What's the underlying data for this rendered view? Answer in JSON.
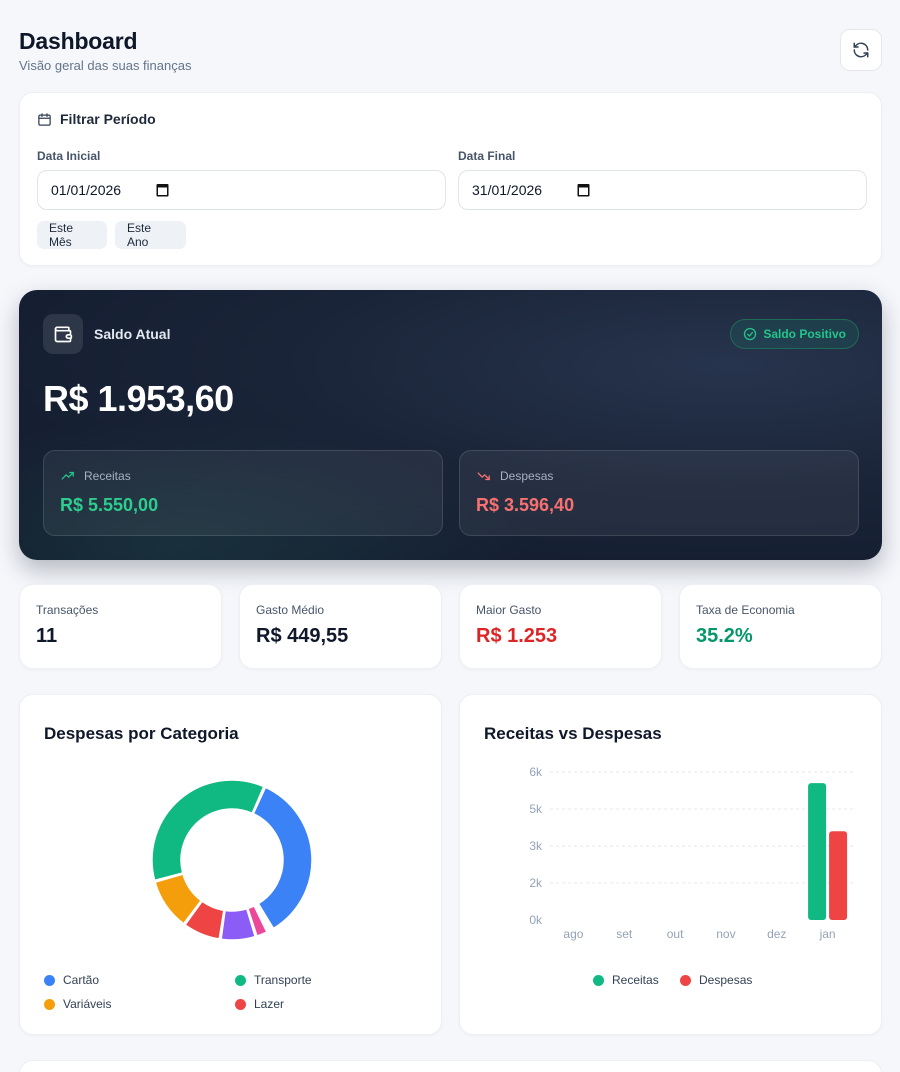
{
  "header": {
    "title": "Dashboard",
    "subtitle": "Visão geral das suas finanças",
    "refresh_icon": "refresh-icon"
  },
  "filter": {
    "title": "Filtrar Período",
    "start_label": "Data Inicial",
    "start_value": "01/01/2026",
    "end_label": "Data Final",
    "end_value": "31/01/2026",
    "quick": [
      "Este Mês",
      "Este Ano"
    ]
  },
  "balance": {
    "label": "Saldo Atual",
    "badge": "Saldo Positivo",
    "value": "R$ 1.953,60",
    "income_label": "Receitas",
    "income_value": "R$ 5.550,00",
    "expense_label": "Despesas",
    "expense_value": "R$ 3.596,40"
  },
  "stats": [
    {
      "label": "Transações",
      "value": "11",
      "color": "#0f172a"
    },
    {
      "label": "Gasto Médio",
      "value": "R$ 449,55",
      "color": "#0f172a"
    },
    {
      "label": "Maior Gasto",
      "value": "R$ 1.253",
      "color": "#dc2626"
    },
    {
      "label": "Taxa de Economia",
      "value": "35.2%",
      "color": "#059669"
    }
  ],
  "donut": {
    "title": "Despesas por Categoria",
    "legend": [
      "Cartão",
      "Transporte",
      "Variáveis",
      "Lazer"
    ]
  },
  "bar": {
    "title": "Receitas vs Despesas",
    "legend": [
      "Receitas",
      "Despesas"
    ]
  },
  "chart_data": [
    {
      "type": "pie",
      "title": "Despesas por Categoria",
      "series": [
        {
          "name": "Cartão",
          "value": 1253,
          "color": "#3b82f6"
        },
        {
          "name": "",
          "value": 20,
          "color": "#60a5fa"
        },
        {
          "name": "",
          "value": 20,
          "color": "#06b6d4"
        },
        {
          "name": "",
          "value": 90,
          "color": "#ec4899"
        },
        {
          "name": "",
          "value": 260,
          "color": "#8b5cf6"
        },
        {
          "name": "Lazer",
          "value": 280,
          "color": "#ef4444"
        },
        {
          "name": "Variáveis",
          "value": 380,
          "color": "#f59e0b"
        },
        {
          "name": "Transporte",
          "value": 1293.4,
          "color": "#10b981"
        }
      ]
    },
    {
      "type": "bar",
      "title": "Receitas vs Despesas",
      "categories": [
        "ago",
        "set",
        "out",
        "nov",
        "dez",
        "jan"
      ],
      "y_ticks": [
        "0k",
        "2k",
        "3k",
        "5k",
        "6k"
      ],
      "ylim": [
        0,
        6000
      ],
      "grid": true,
      "series": [
        {
          "name": "Receitas",
          "values": [
            0,
            0,
            0,
            0,
            0,
            5550
          ],
          "color": "#10b981"
        },
        {
          "name": "Despesas",
          "values": [
            0,
            0,
            0,
            0,
            0,
            3596.4
          ],
          "color": "#ef4444"
        }
      ]
    }
  ]
}
